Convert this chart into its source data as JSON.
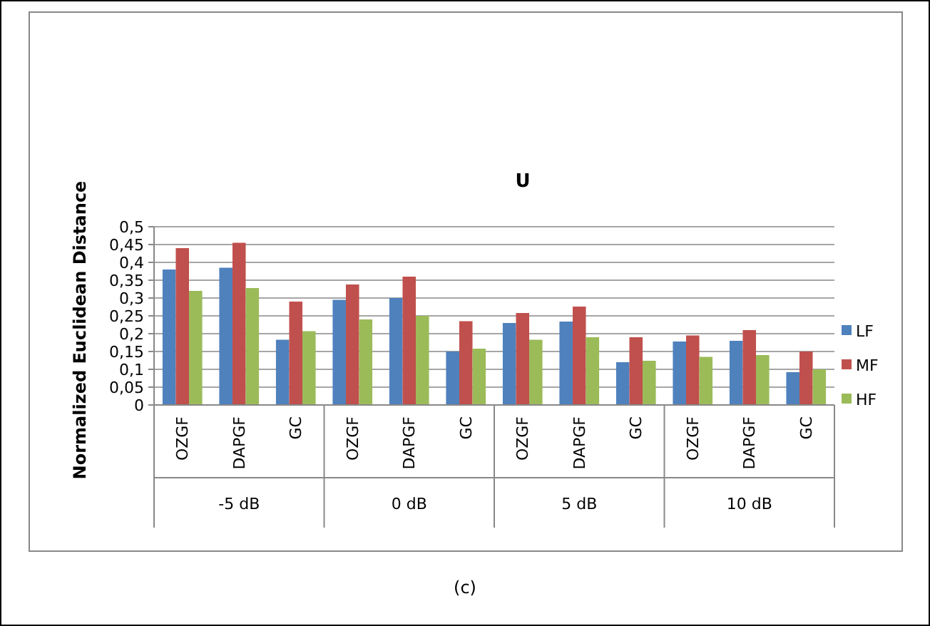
{
  "chart_data": {
    "type": "bar",
    "title": "U",
    "ylabel": "Normalized Euclidean Distance",
    "categories": [
      "OZGF",
      "DAPGF",
      "GC",
      "OZGF",
      "DAPGF",
      "GC",
      "OZGF",
      "DAPGF",
      "GC",
      "OZGF",
      "DAPGF",
      "GC"
    ],
    "series": [
      {
        "name": "LF",
        "color": "#4f81bd",
        "values": [
          0.38,
          0.385,
          0.183,
          0.295,
          0.3,
          0.15,
          0.23,
          0.234,
          0.12,
          0.178,
          0.18,
          0.092
        ]
      },
      {
        "name": "MF",
        "color": "#c0504d",
        "values": [
          0.44,
          0.455,
          0.29,
          0.338,
          0.36,
          0.235,
          0.258,
          0.276,
          0.19,
          0.195,
          0.21,
          0.15
        ]
      },
      {
        "name": "HF",
        "color": "#9bbb59",
        "values": [
          0.32,
          0.328,
          0.207,
          0.24,
          0.25,
          0.158,
          0.183,
          0.19,
          0.124,
          0.135,
          0.14,
          0.1
        ]
      }
    ],
    "ylim": [
      0,
      0.5
    ],
    "yticks": [
      0,
      {
        "value": 0.05,
        "label": "0,05"
      },
      {
        "value": 0.1,
        "label": "0,1"
      },
      {
        "value": 0.15,
        "label": "0,15"
      },
      {
        "value": 0.2,
        "label": "0,2"
      },
      {
        "value": 0.25,
        "label": "0,25"
      },
      {
        "value": 0.3,
        "label": "0,3"
      },
      {
        "value": 0.35,
        "label": "0,35"
      },
      {
        "value": 0.4,
        "label": "0,4"
      },
      {
        "value": 0.45,
        "label": "0,45"
      },
      {
        "value": 0.5,
        "label": "0,5"
      }
    ],
    "grid": "y",
    "legend": "right",
    "annotations": [
      "-5 dB",
      "0 dB",
      "5 dB",
      "10 dB",
      "(c)"
    ]
  }
}
